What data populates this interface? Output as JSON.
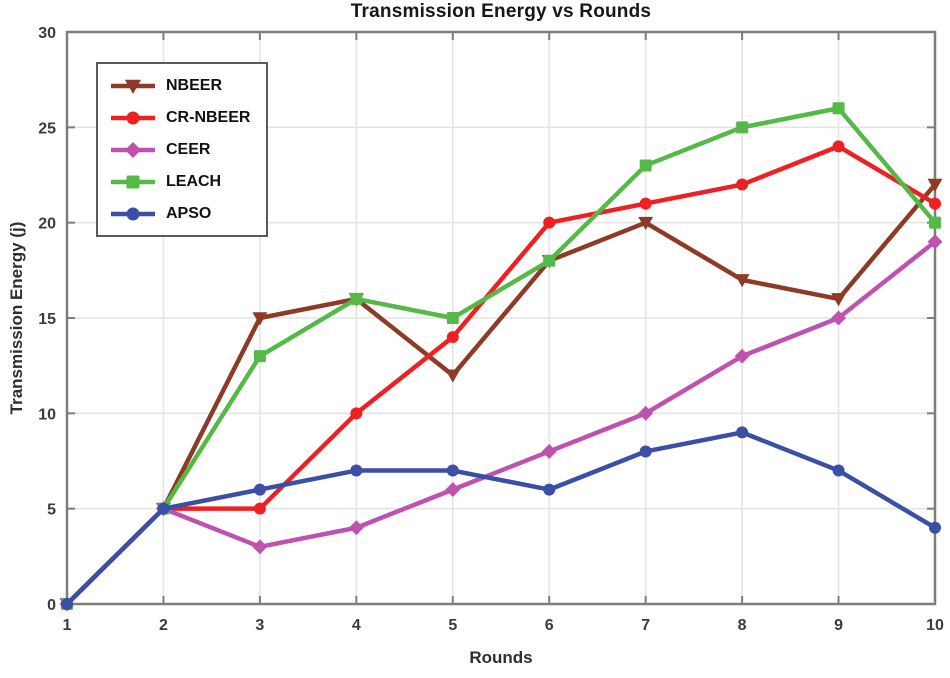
{
  "chart_data": {
    "type": "line",
    "title": "Transmission Energy vs Rounds",
    "xlabel": "Rounds",
    "ylabel": "Transmission Energy (j)",
    "x": [
      1,
      2,
      3,
      4,
      5,
      6,
      7,
      8,
      9,
      10
    ],
    "xlim": [
      1,
      10
    ],
    "ylim": [
      0,
      30
    ],
    "xticks": [
      1,
      2,
      3,
      4,
      5,
      6,
      7,
      8,
      9,
      10
    ],
    "yticks": [
      0,
      5,
      10,
      15,
      20,
      25,
      30
    ],
    "grid": true,
    "legend_position": "top-left",
    "axis_color": "#7d7d7d",
    "grid_color": "#e4e4e4",
    "series": [
      {
        "name": "NBEER",
        "color": "#8c3b26",
        "marker": "triangle-down",
        "values": [
          0,
          5,
          15,
          16,
          12,
          18,
          20,
          17,
          16,
          22
        ]
      },
      {
        "name": "CR-NBEER",
        "color": "#ee2024",
        "marker": "circle",
        "values": [
          0,
          5,
          5,
          10,
          14,
          20,
          21,
          22,
          24,
          21
        ]
      },
      {
        "name": "CEER",
        "color": "#bf52b0",
        "marker": "diamond",
        "values": [
          0,
          5,
          3,
          4,
          6,
          8,
          10,
          13,
          15,
          19
        ]
      },
      {
        "name": "LEACH",
        "color": "#55b948",
        "marker": "square",
        "values": [
          0,
          5,
          13,
          16,
          15,
          18,
          23,
          25,
          26,
          20
        ]
      },
      {
        "name": "APSO",
        "color": "#3a4fa5",
        "marker": "circle",
        "values": [
          0,
          5,
          6,
          7,
          7,
          6,
          8,
          9,
          7,
          4
        ]
      }
    ]
  }
}
